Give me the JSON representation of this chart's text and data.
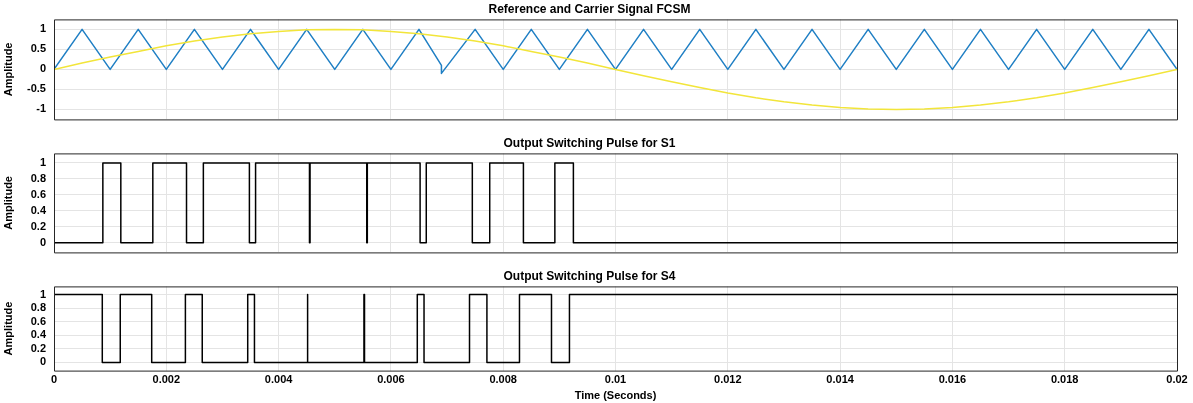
{
  "chart_data": [
    {
      "type": "line",
      "title": "Reference and Carrier Signal FCSM",
      "ylabel": "Amplitude",
      "xlim": [
        0,
        0.02
      ],
      "xticks": [
        0,
        0.002,
        0.004,
        0.006,
        0.008,
        0.01,
        0.012,
        0.014,
        0.016,
        0.018,
        0.02
      ],
      "ylim": [
        -1.25,
        1.25
      ],
      "yticks": [
        -1,
        -0.5,
        0,
        0.5,
        1
      ],
      "grid": true,
      "legend": false,
      "tick_labels": "y",
      "marker": "none",
      "line_style": "solid",
      "series": [
        {
          "color": "#f2e53a",
          "x": [
            0,
            0.0005,
            0.001,
            0.0015,
            0.002,
            0.0025,
            0.003,
            0.0035,
            0.004,
            0.0045,
            0.005,
            0.0055,
            0.006,
            0.0065,
            0.007,
            0.0075,
            0.008,
            0.0085,
            0.009,
            0.0095,
            0.01,
            0.0105,
            0.011,
            0.0115,
            0.012,
            0.0125,
            0.013,
            0.0135,
            0.014,
            0.0145,
            0.015,
            0.0155,
            0.016,
            0.0165,
            0.017,
            0.0175,
            0.018,
            0.0185,
            0.019,
            0.0195,
            0.02
          ],
          "values": [
            0,
            0.16,
            0.31,
            0.45,
            0.59,
            0.71,
            0.81,
            0.89,
            0.95,
            0.99,
            1,
            0.99,
            0.95,
            0.89,
            0.81,
            0.71,
            0.59,
            0.45,
            0.31,
            0.16,
            0,
            -0.16,
            -0.31,
            -0.45,
            -0.59,
            -0.71,
            -0.81,
            -0.89,
            -0.95,
            -0.99,
            -1,
            -0.99,
            -0.95,
            -0.89,
            -0.81,
            -0.71,
            -0.59,
            -0.45,
            -0.31,
            -0.16,
            0
          ]
        },
        {
          "color": "#1f7fc4",
          "x": [
            0,
            0.0005,
            0.001,
            0.0015,
            0.002,
            0.0025,
            0.003,
            0.0035,
            0.004,
            0.0045,
            0.005,
            0.0055,
            0.006,
            0.0065,
            0.0069,
            0.0069,
            0.0075,
            0.008,
            0.0085,
            0.009,
            0.0095,
            0.01,
            0.0105,
            0.011,
            0.0115,
            0.012,
            0.0125,
            0.013,
            0.0135,
            0.014,
            0.0145,
            0.015,
            0.0155,
            0.016,
            0.0165,
            0.017,
            0.0175,
            0.018,
            0.0185,
            0.019,
            0.0195,
            0.02
          ],
          "values": [
            0,
            1,
            0,
            1,
            0,
            1,
            0,
            1,
            0,
            1,
            0,
            1,
            0,
            1,
            0.1,
            -0.1,
            1,
            0,
            1,
            0,
            1,
            0,
            1,
            0,
            1,
            0,
            1,
            0,
            1,
            0,
            1,
            0,
            1,
            0,
            1,
            0,
            1,
            0,
            1,
            0,
            1,
            0
          ]
        }
      ]
    },
    {
      "type": "line",
      "title": "Output Switching Pulse for S1",
      "ylabel": "Amplitude",
      "xlim": [
        0,
        0.02
      ],
      "xticks": [
        0,
        0.002,
        0.004,
        0.006,
        0.008,
        0.01,
        0.012,
        0.014,
        0.016,
        0.018,
        0.02
      ],
      "ylim": [
        -0.12,
        1.12
      ],
      "yticks": [
        0,
        0.2,
        0.4,
        0.6,
        0.8,
        1
      ],
      "grid": true,
      "legend": false,
      "tick_labels": "y",
      "marker": "none",
      "line_style": "solid",
      "series": [
        {
          "color": "#000000",
          "x": [
            0,
            0.00087,
            0.00087,
            0.00119,
            0.00119,
            0.00176,
            0.00176,
            0.00236,
            0.00236,
            0.00266,
            0.00266,
            0.00348,
            0.00348,
            0.00359,
            0.00359,
            0.00455,
            0.00455,
            0.00456,
            0.00456,
            0.00557,
            0.00557,
            0.00558,
            0.00558,
            0.00652,
            0.00652,
            0.00663,
            0.00663,
            0.00745,
            0.00745,
            0.00776,
            0.00776,
            0.00836,
            0.00836,
            0.00892,
            0.00892,
            0.00925,
            0.00925,
            0.02
          ],
          "values": [
            0,
            0,
            1,
            1,
            0,
            0,
            1,
            1,
            0,
            0,
            1,
            1,
            0,
            0,
            1,
            1,
            0,
            0,
            1,
            1,
            0,
            0,
            1,
            1,
            0,
            0,
            1,
            1,
            0,
            0,
            1,
            1,
            0,
            0,
            1,
            1,
            0,
            0
          ]
        }
      ]
    },
    {
      "type": "line",
      "title": "Output Switching Pulse for S4",
      "xlabel": "Time (Seconds)",
      "ylabel": "Amplitude",
      "xlim": [
        0,
        0.02
      ],
      "xticks": [
        0,
        0.002,
        0.004,
        0.006,
        0.008,
        0.01,
        0.012,
        0.014,
        0.016,
        0.018,
        0.02
      ],
      "ylim": [
        -0.12,
        1.12
      ],
      "yticks": [
        0,
        0.2,
        0.4,
        0.6,
        0.8,
        1
      ],
      "grid": true,
      "legend": false,
      "marker": "none",
      "line_style": "solid",
      "series": [
        {
          "color": "#000000",
          "x": [
            0,
            0.00086,
            0.00086,
            0.00118,
            0.00118,
            0.00174,
            0.00174,
            0.00234,
            0.00234,
            0.00264,
            0.00264,
            0.00345,
            0.00345,
            0.00357,
            0.00357,
            0.00451,
            0.00451,
            0.00452,
            0.00452,
            0.00552,
            0.00552,
            0.00553,
            0.00553,
            0.00647,
            0.00647,
            0.00659,
            0.00659,
            0.0074,
            0.0074,
            0.00771,
            0.00771,
            0.00829,
            0.00829,
            0.00886,
            0.00886,
            0.00918,
            0.00918,
            0.02
          ],
          "values": [
            1,
            1,
            0,
            0,
            1,
            1,
            0,
            0,
            1,
            1,
            0,
            0,
            1,
            1,
            0,
            0,
            1,
            1,
            0,
            0,
            1,
            1,
            0,
            0,
            1,
            1,
            0,
            0,
            1,
            1,
            0,
            0,
            1,
            1,
            0,
            0,
            1,
            1
          ]
        }
      ]
    }
  ]
}
